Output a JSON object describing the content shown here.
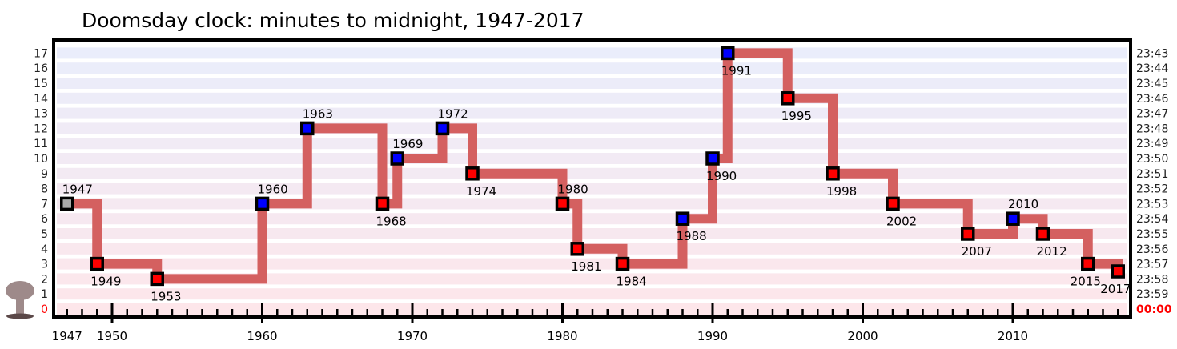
{
  "chart_data": {
    "type": "line",
    "title": "Doomsday clock: minutes to midnight, 1947-2017",
    "xlim": [
      1947,
      2017
    ],
    "ylim": [
      0,
      17
    ],
    "x_tick_labels": [
      "1947",
      "1950",
      "1960",
      "1970",
      "1980",
      "1990",
      "2000",
      "2010"
    ],
    "x_ticks": [
      1947,
      1950,
      1960,
      1970,
      1980,
      1990,
      2000,
      2010
    ],
    "y_ticks_left": [
      "0",
      "1",
      "2",
      "3",
      "4",
      "5",
      "6",
      "7",
      "8",
      "9",
      "10",
      "11",
      "12",
      "13",
      "14",
      "15",
      "16",
      "17"
    ],
    "y_ticks_right": [
      "00:00",
      "23:59",
      "23:58",
      "23:57",
      "23:56",
      "23:55",
      "23:54",
      "23:53",
      "23:52",
      "23:51",
      "23:50",
      "23:49",
      "23:48",
      "23:47",
      "23:46",
      "23:45",
      "23:44",
      "23:43"
    ],
    "step": "post",
    "points": [
      {
        "x": 1947,
        "y": 7,
        "label": "1947",
        "kind": "initial"
      },
      {
        "x": 1949,
        "y": 3,
        "label": "1949",
        "kind": "closer"
      },
      {
        "x": 1953,
        "y": 2,
        "label": "1953",
        "kind": "closer"
      },
      {
        "x": 1960,
        "y": 7,
        "label": "1960",
        "kind": "farther"
      },
      {
        "x": 1963,
        "y": 12,
        "label": "1963",
        "kind": "farther"
      },
      {
        "x": 1968,
        "y": 7,
        "label": "1968",
        "kind": "closer"
      },
      {
        "x": 1969,
        "y": 10,
        "label": "1969",
        "kind": "farther"
      },
      {
        "x": 1972,
        "y": 12,
        "label": "1972",
        "kind": "farther"
      },
      {
        "x": 1974,
        "y": 9,
        "label": "1974",
        "kind": "closer"
      },
      {
        "x": 1980,
        "y": 7,
        "label": "1980",
        "kind": "closer"
      },
      {
        "x": 1981,
        "y": 4,
        "label": "1981",
        "kind": "closer"
      },
      {
        "x": 1984,
        "y": 3,
        "label": "1984",
        "kind": "closer"
      },
      {
        "x": 1988,
        "y": 6,
        "label": "1988",
        "kind": "farther"
      },
      {
        "x": 1990,
        "y": 10,
        "label": "1990",
        "kind": "farther"
      },
      {
        "x": 1991,
        "y": 17,
        "label": "1991",
        "kind": "farther"
      },
      {
        "x": 1995,
        "y": 14,
        "label": "1995",
        "kind": "closer"
      },
      {
        "x": 1998,
        "y": 9,
        "label": "1998",
        "kind": "closer"
      },
      {
        "x": 2002,
        "y": 7,
        "label": "2002",
        "kind": "closer"
      },
      {
        "x": 2007,
        "y": 5,
        "label": "2007",
        "kind": "closer"
      },
      {
        "x": 2010,
        "y": 6,
        "label": "2010",
        "kind": "farther"
      },
      {
        "x": 2012,
        "y": 5,
        "label": "2012",
        "kind": "closer"
      },
      {
        "x": 2015,
        "y": 3,
        "label": "2015",
        "kind": "closer"
      },
      {
        "x": 2017,
        "y": 2.5,
        "label": "2017",
        "kind": "closer"
      }
    ],
    "colors": {
      "line": "#d46060",
      "closer": "#ff0000",
      "farther": "#0000ff",
      "initial": "#aaaaaa",
      "midnight": "#ff0000",
      "band_top": "#eaedfb",
      "band_bottom": "#fde6ea"
    },
    "icons": [
      "mushroom-cloud-icon"
    ]
  }
}
